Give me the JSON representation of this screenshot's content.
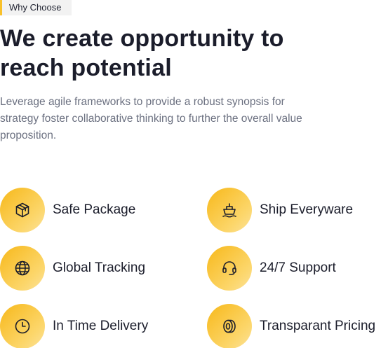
{
  "tag": "Why Choose",
  "headline_line1": "We create opportunity to",
  "headline_line2": "reach potential",
  "description_line1": "Leverage agile frameworks to provide a robust synopsis for",
  "description_line2": "strategy foster collaborative thinking to further the overall value",
  "description_line3": "proposition.",
  "features": [
    {
      "label": "Safe Package",
      "icon": "package-icon"
    },
    {
      "label": "Ship Everyware",
      "icon": "ship-icon"
    },
    {
      "label": "Global Tracking",
      "icon": "globe-icon"
    },
    {
      "label": "24/7 Support",
      "icon": "headset-icon"
    },
    {
      "label": "In Time Delivery",
      "icon": "clock-icon"
    },
    {
      "label": "Transparant Pricing",
      "icon": "coin-icon"
    }
  ],
  "colors": {
    "accent": "#f9c12a",
    "heading": "#1b1d2b",
    "body_text": "#6b7080"
  }
}
